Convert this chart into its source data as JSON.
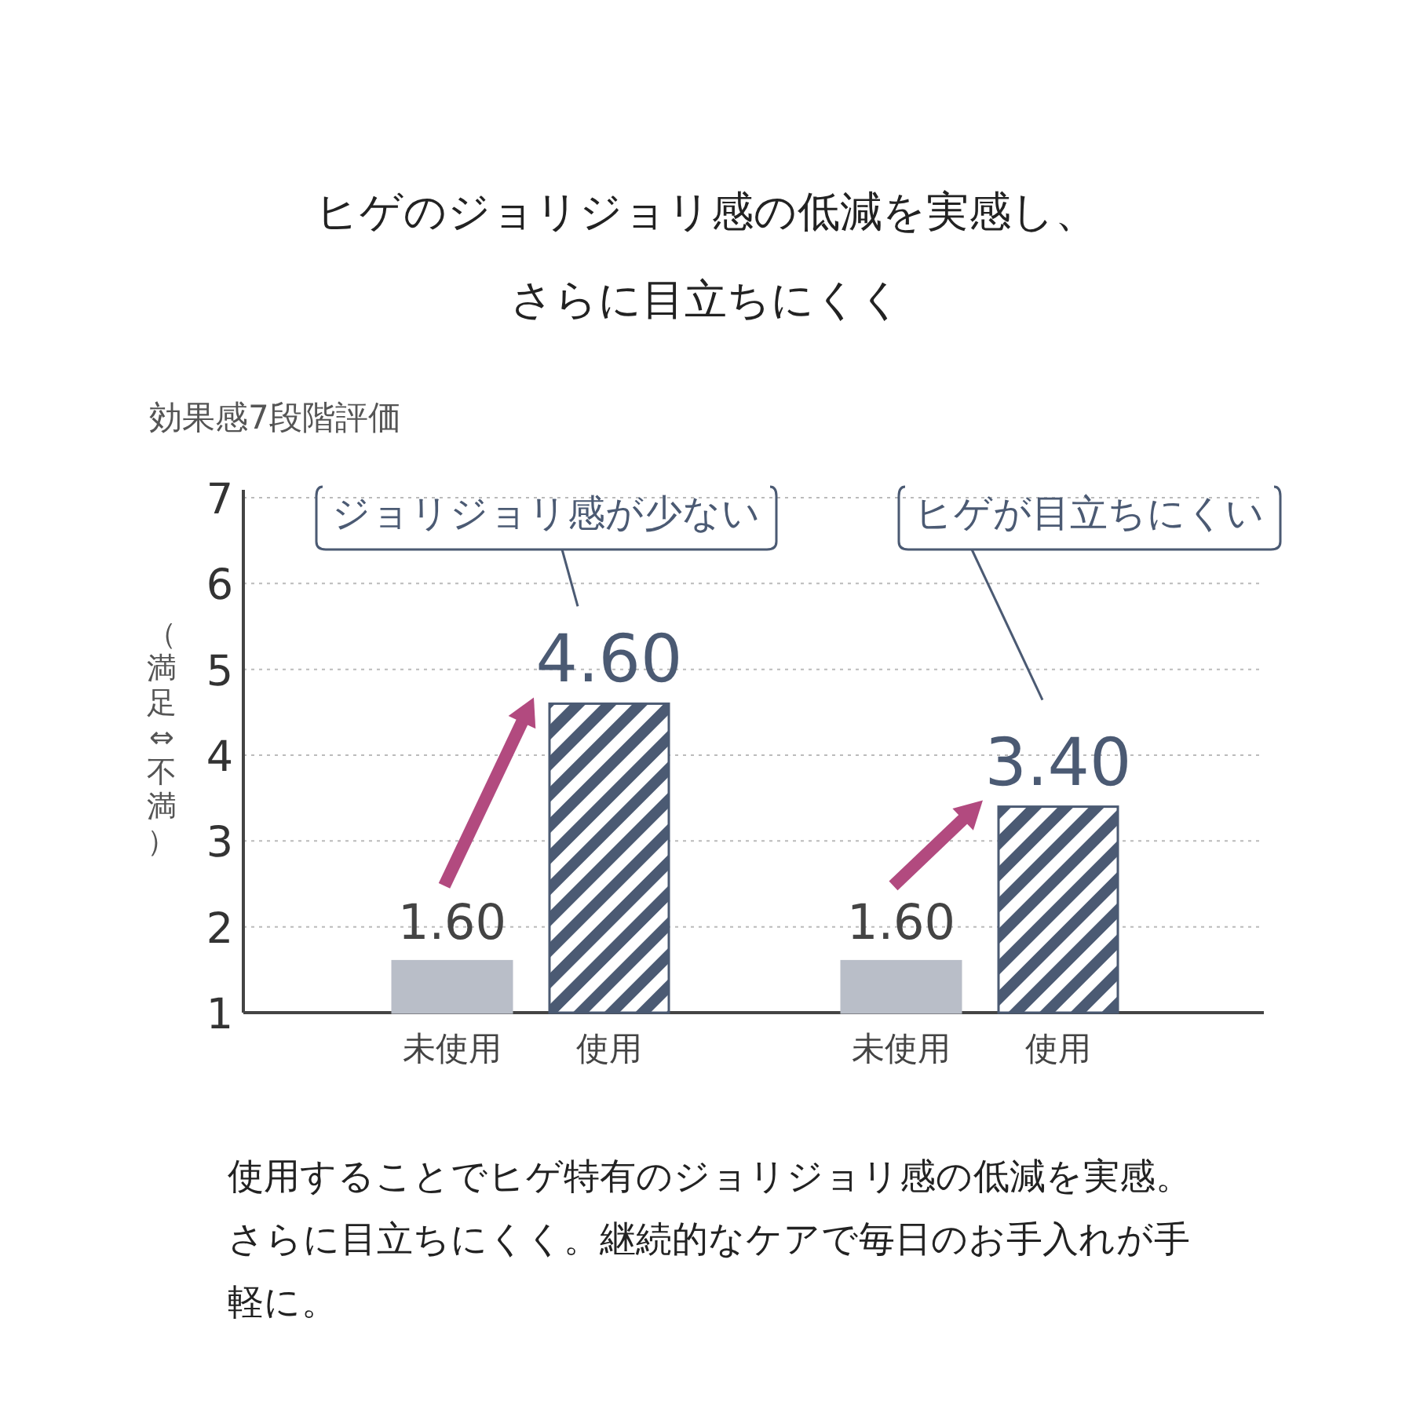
{
  "chart_data": {
    "type": "bar",
    "title": "ヒゲのジョリジョリ感の低減を実感し、さらに目立ちにくく",
    "subtitle": "効果感7段階評価",
    "ylabel": "（満足⇔不満）",
    "categories": [
      "未使用",
      "使用",
      "未使用",
      "使用"
    ],
    "values": [
      1.6,
      4.6,
      1.6,
      3.4
    ],
    "colors": [
      "#b9bec8",
      "#4b5a73",
      "#b9bec8",
      "#4b5a73"
    ],
    "value_labels": [
      "1.60",
      "4.60",
      "1.60",
      "3.40"
    ],
    "ylim": [
      1,
      7
    ],
    "yticks": [
      1,
      2,
      3,
      4,
      5,
      6,
      7
    ],
    "grid": "y",
    "annotations": [
      "ジョリジョリ感が少ない",
      "ヒゲが目立ちにくい",
      "使用することでヒゲ特有のジョリジョリ感の低減を実感。さらに目立ちにくく。継続的なケアで毎日のお手入れが手軽に。"
    ]
  }
}
